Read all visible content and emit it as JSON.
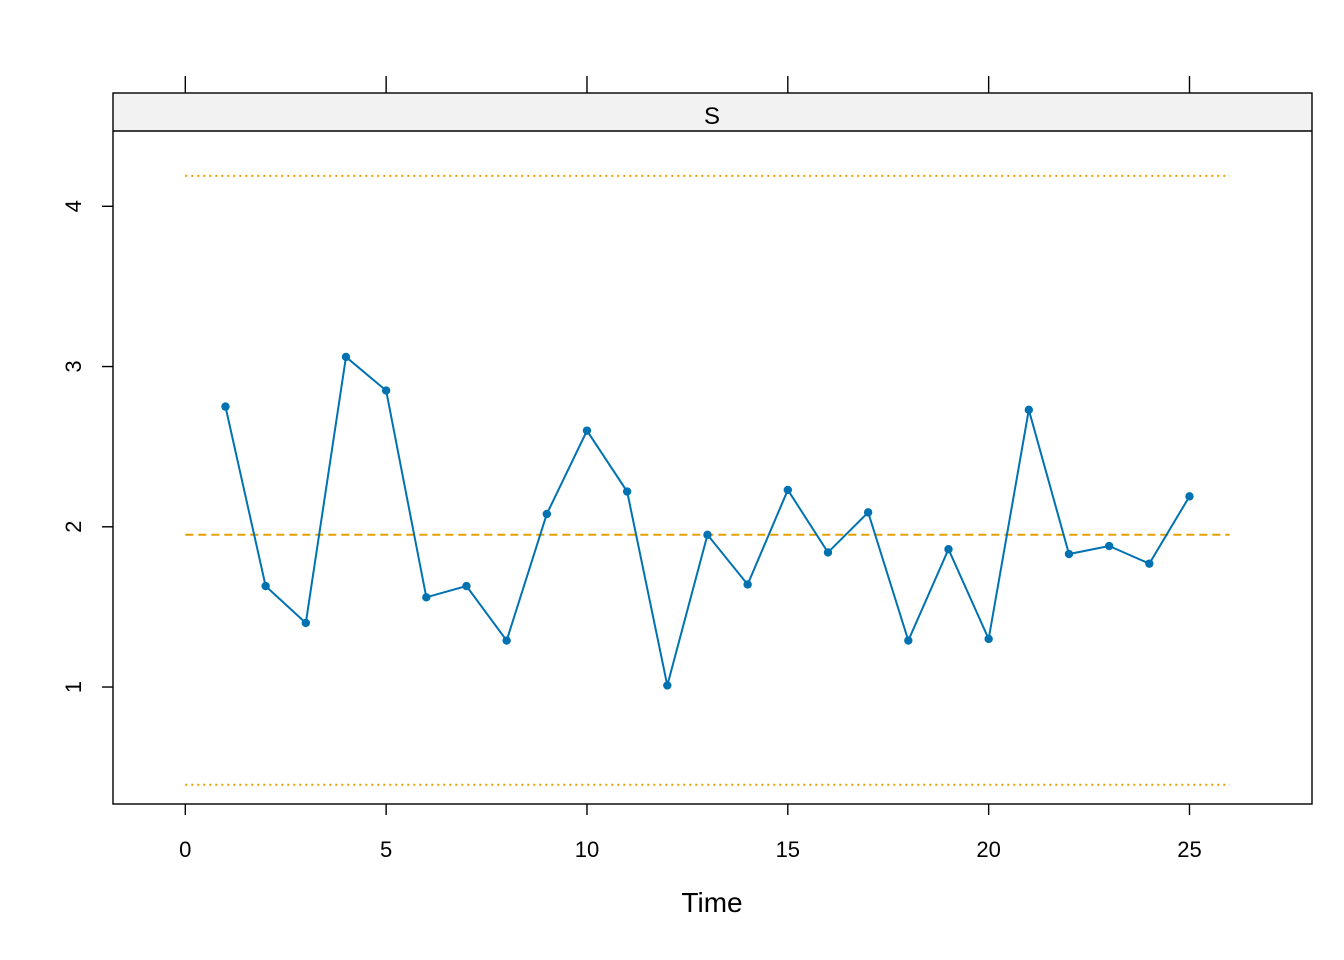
{
  "chart_data": {
    "type": "line",
    "strip_label": "S",
    "xlabel": "Time",
    "ylabel": "",
    "xlim": [
      -1.8,
      28.05
    ],
    "ylim": [
      0.27,
      4.47
    ],
    "x_ticks": [
      0,
      5,
      10,
      15,
      20,
      25
    ],
    "x_tick_labels": [
      "0",
      "5",
      "10",
      "15",
      "20",
      "25"
    ],
    "y_ticks": [
      1,
      2,
      3,
      4
    ],
    "y_tick_labels": [
      "1",
      "2",
      "3",
      "4"
    ],
    "grid": false,
    "series": [
      {
        "color": "#0072B2",
        "x": [
          1,
          2,
          3,
          4,
          5,
          6,
          7,
          8,
          9,
          10,
          11,
          12,
          13,
          14,
          15,
          16,
          17,
          18,
          19,
          20,
          21,
          22,
          23,
          24,
          25
        ],
        "values": [
          2.75,
          1.63,
          1.4,
          3.06,
          2.85,
          1.56,
          1.63,
          1.29,
          2.08,
          2.6,
          2.22,
          1.01,
          1.95,
          1.64,
          2.23,
          1.84,
          2.09,
          1.29,
          1.86,
          1.3,
          2.73,
          1.83,
          1.88,
          1.77,
          2.19
        ]
      }
    ],
    "reference_lines": [
      {
        "style": "dashed",
        "color": "#E69F00",
        "y": 1.95,
        "x_from": 0,
        "x_to": 26
      },
      {
        "style": "dotted",
        "color": "#E69F00",
        "y": 4.19,
        "x_from": 0,
        "x_to": 26
      },
      {
        "style": "dotted",
        "color": "#E69F00",
        "y": 0.39,
        "x_from": 0,
        "x_to": 26
      }
    ]
  }
}
